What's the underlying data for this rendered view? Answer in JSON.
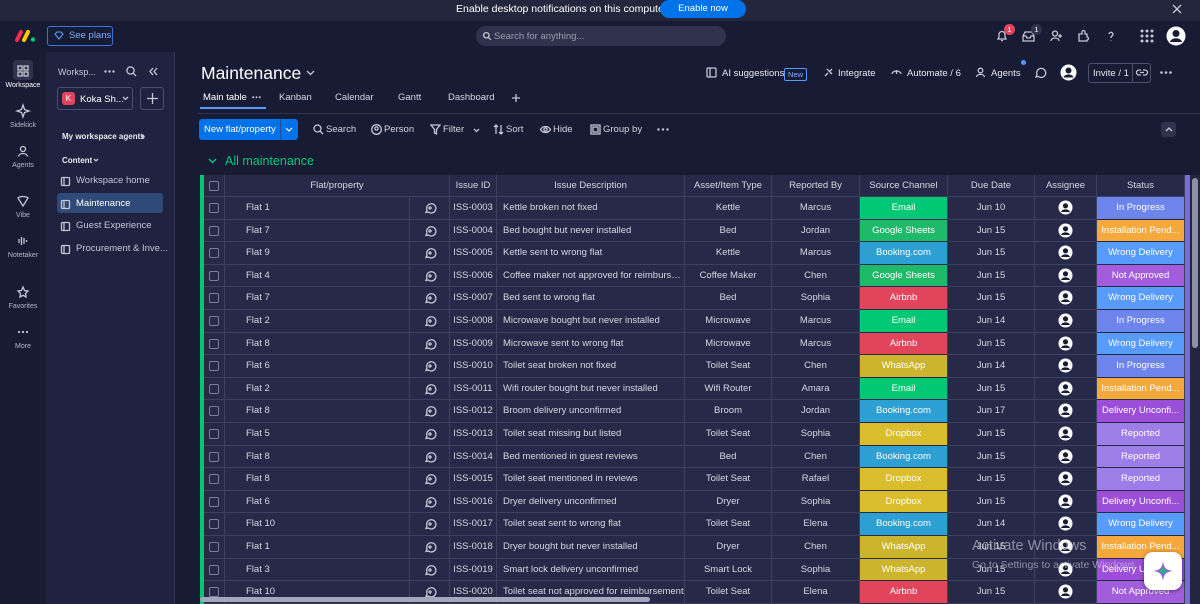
{
  "banner": {
    "text": "Enable desktop notifications on this computer",
    "button": "Enable now"
  },
  "topbar": {
    "see_plans": "See plans",
    "search": "Search for anything...",
    "notifications_badge": "1",
    "inbox_badge": "1"
  },
  "rail": [
    "Workspace",
    "Sidekick",
    "Agents",
    "Vibe",
    "Notetaker",
    "Favorites",
    "More"
  ],
  "sidebar": {
    "title": "Worksp...",
    "workspace_initial": "K",
    "workspace": "Koka Sh...",
    "agents": "My workspace agents",
    "section": "Content",
    "items": [
      "Workspace home",
      "Maintenance",
      "Guest Experience",
      "Procurement & Inve..."
    ]
  },
  "board": {
    "title": "Maintenance",
    "tabs": [
      "Main table",
      "Kanban",
      "Calendar",
      "Gantt",
      "Dashboard"
    ],
    "ai_suggestions": "AI suggestions",
    "new_badge": "New",
    "integrate": "Integrate",
    "automate": "Automate / 6",
    "agents": "Agents",
    "invite": "Invite / 1"
  },
  "toolbar": {
    "new_item": "New flat/property",
    "search": "Search",
    "person": "Person",
    "filter": "Filter",
    "sort": "Sort",
    "hide": "Hide",
    "group_by": "Group by"
  },
  "group": "All maintenance",
  "table": {
    "columns": [
      "Flat/property",
      "Issue ID",
      "Issue Description",
      "Asset/Item Type",
      "Reported By",
      "Source Channel",
      "Due Date",
      "Assignee",
      "Status"
    ],
    "rows": [
      [
        "Flat 1",
        "ISS-0003",
        "Kettle broken not fixed",
        "Kettle",
        "Marcus",
        {
          "label": "Email",
          "color": "#00c875"
        },
        "Jun 10",
        {
          "label": "In Progress",
          "color": "#6c84ec"
        }
      ],
      [
        "Flat 7",
        "ISS-0004",
        "Bed bought but never installed",
        "Bed",
        "Jordan",
        {
          "label": "Google Sheets",
          "color": "#1fb96a"
        },
        "Jun 15",
        {
          "label": "Installation Pend...",
          "color": "#f5a83c"
        }
      ],
      [
        "Flat 9",
        "ISS-0005",
        "Kettle sent to wrong flat",
        "Kettle",
        "Marcus",
        {
          "label": "Booking.com",
          "color": "#2d9fd2"
        },
        "Jun 15",
        {
          "label": "Wrong Delivery",
          "color": "#579bfc"
        }
      ],
      [
        "Flat 4",
        "ISS-0006",
        "Coffee maker not approved for reimbursem...",
        "Coffee Maker",
        "Chen",
        {
          "label": "Google Sheets",
          "color": "#1fb96a"
        },
        "Jun 15",
        {
          "label": "Not Approved",
          "color": "#a25ddc"
        }
      ],
      [
        "Flat 7",
        "ISS-0007",
        "Bed sent to wrong flat",
        "Bed",
        "Sophia",
        {
          "label": "Airbnb",
          "color": "#e2445c"
        },
        "Jun 15",
        {
          "label": "Wrong Delivery",
          "color": "#579bfc"
        }
      ],
      [
        "Flat 2",
        "ISS-0008",
        "Microwave bought but never installed",
        "Microwave",
        "Marcus",
        {
          "label": "Email",
          "color": "#00c875"
        },
        "Jun 14",
        {
          "label": "In Progress",
          "color": "#6c84ec"
        }
      ],
      [
        "Flat 8",
        "ISS-0009",
        "Microwave sent to wrong flat",
        "Microwave",
        "Marcus",
        {
          "label": "Airbnb",
          "color": "#e2445c"
        },
        "Jun 15",
        {
          "label": "Wrong Delivery",
          "color": "#579bfc"
        }
      ],
      [
        "Flat 6",
        "ISS-0010",
        "Toilet seat broken not fixed",
        "Toilet Seat",
        "Chen",
        {
          "label": "WhatsApp",
          "color": "#cdb42f"
        },
        "Jun 14",
        {
          "label": "In Progress",
          "color": "#6c84ec"
        }
      ],
      [
        "Flat 2",
        "ISS-0011",
        "Wifi router bought but never installed",
        "Wifi Router",
        "Amara",
        {
          "label": "Email",
          "color": "#00c875"
        },
        "Jun 15",
        {
          "label": "Installation Pend...",
          "color": "#f5a83c"
        }
      ],
      [
        "Flat 8",
        "ISS-0012",
        "Broom delivery unconfirmed",
        "Broom",
        "Jordan",
        {
          "label": "Booking.com",
          "color": "#2d9fd2"
        },
        "Jun 17",
        {
          "label": "Delivery Unconfi...",
          "color": "#9b4fd9"
        }
      ],
      [
        "Flat 5",
        "ISS-0013",
        "Toilet seat missing but listed",
        "Toilet Seat",
        "Sophia",
        {
          "label": "Dropbox",
          "color": "#d9bd2c"
        },
        "Jun 15",
        {
          "label": "Reported",
          "color": "#9d7de8"
        }
      ],
      [
        "Flat 8",
        "ISS-0014",
        "Bed mentioned in guest reviews",
        "Bed",
        "Chen",
        {
          "label": "Booking.com",
          "color": "#2d9fd2"
        },
        "Jun 15",
        {
          "label": "Reported",
          "color": "#9d7de8"
        }
      ],
      [
        "Flat 8",
        "ISS-0015",
        "Toilet seat mentioned in reviews",
        "Toilet Seat",
        "Rafael",
        {
          "label": "Dropbox",
          "color": "#d9bd2c"
        },
        "Jun 15",
        {
          "label": "Reported",
          "color": "#9d7de8"
        }
      ],
      [
        "Flat 6",
        "ISS-0016",
        "Dryer delivery unconfirmed",
        "Dryer",
        "Sophia",
        {
          "label": "Dropbox",
          "color": "#d9bd2c"
        },
        "Jun 15",
        {
          "label": "Delivery Unconfi...",
          "color": "#9b4fd9"
        }
      ],
      [
        "Flat 10",
        "ISS-0017",
        "Toilet seat sent to wrong flat",
        "Toilet Seat",
        "Elena",
        {
          "label": "Booking.com",
          "color": "#2d9fd2"
        },
        "Jun 14",
        {
          "label": "Wrong Delivery",
          "color": "#579bfc"
        }
      ],
      [
        "Flat 1",
        "ISS-0018",
        "Dryer bought but never installed",
        "Dryer",
        "Chen",
        {
          "label": "WhatsApp",
          "color": "#cdb42f"
        },
        "Jun 15",
        {
          "label": "Installation Pend...",
          "color": "#f5a83c"
        }
      ],
      [
        "Flat 3",
        "ISS-0019",
        "Smart lock delivery unconfirmed",
        "Smart Lock",
        "Sophia",
        {
          "label": "WhatsApp",
          "color": "#cdb42f"
        },
        "Jun 15",
        {
          "label": "Delivery Unconfi...",
          "color": "#9b4fd9"
        }
      ],
      [
        "Flat 10",
        "ISS-0020",
        "Toilet seat not approved for reimbursement",
        "Toilet Seat",
        "Elena",
        {
          "label": "Airbnb",
          "color": "#e2445c"
        },
        "Jun 15",
        {
          "label": "Not Approved",
          "color": "#a25ddc"
        }
      ]
    ]
  },
  "watermark": {
    "title": "Activate Windows",
    "subtitle": "Go to Settings to activate Windows."
  }
}
